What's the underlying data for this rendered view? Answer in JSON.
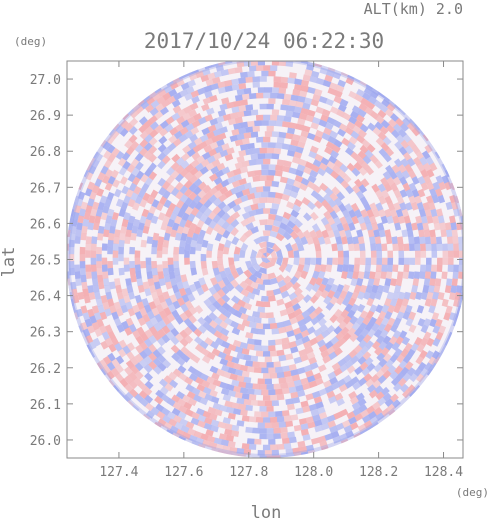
{
  "header": {
    "altitude_label": "ALT(km) 2.0",
    "timestamp": "2017/10/24 06:22:30"
  },
  "chart_data": {
    "type": "heatmap",
    "title": "2017/10/24 06:22:30",
    "subtitle": "ALT(km) 2.0",
    "xlabel": "lon",
    "ylabel": "lat",
    "x_unit": "(deg)",
    "y_unit": "(deg)",
    "xlim": [
      127.24,
      128.46
    ],
    "ylim": [
      25.95,
      27.05
    ],
    "x_ticks": [
      "127.4",
      "127.6",
      "127.8",
      "128.0",
      "128.2",
      "128.4"
    ],
    "y_ticks": [
      "27.0",
      "26.9",
      "26.8",
      "26.7",
      "26.6",
      "26.5",
      "26.4",
      "26.3",
      "26.2",
      "26.1",
      "26.0"
    ],
    "x_tick_values": [
      127.4,
      127.6,
      127.8,
      128.0,
      128.2,
      128.4
    ],
    "y_tick_values": [
      27.0,
      26.9,
      26.8,
      26.7,
      26.6,
      26.5,
      26.4,
      26.3,
      26.2,
      26.1,
      26.0
    ],
    "radar_center": {
      "lon": 127.855,
      "lat": 26.505
    },
    "coverage_radius_deg_lat": 0.555,
    "colormap": {
      "negative": "#9aa5f0",
      "zero": "#ffffff",
      "positive": "#f3a4a8"
    },
    "grid": false,
    "legend": "none"
  }
}
